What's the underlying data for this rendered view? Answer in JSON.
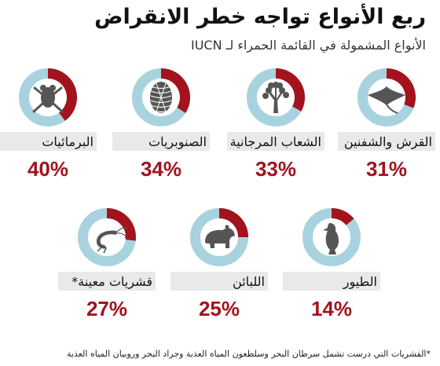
{
  "chart_data": {
    "type": "pie",
    "title": "ربع الأنواع تواجه خطر الانقراض",
    "subtitle": "الأنواع المشمولة في القائمة الحمراء لـ IUCN",
    "categories": [
      "القرش والشفنين",
      "الشعاب المرجانية",
      "الصنوبريات",
      "البرمائيات",
      "الطيور",
      "اللبائن",
      "قشريات معينة*"
    ],
    "values": [
      31,
      33,
      34,
      40,
      14,
      25,
      27
    ],
    "value_labels": [
      "31%",
      "33%",
      "34%",
      "40%",
      "14%",
      "25%",
      "27%"
    ],
    "icons": [
      "ray-icon",
      "coral-icon",
      "pine-cone-icon",
      "frog-icon",
      "bird-icon",
      "bear-icon",
      "shrimp-icon"
    ],
    "colors": {
      "threatened": "#a3121d",
      "remaining": "#a9d2df",
      "value_text": "#a3121d",
      "icon": "#555555",
      "label_bg": "#e9e9e9"
    }
  },
  "footnote": "*القشريات التي درست تشمل سرطان البحر وسلطعون المياه العذبة وجراد البحر وروبيان المياه العذبة"
}
